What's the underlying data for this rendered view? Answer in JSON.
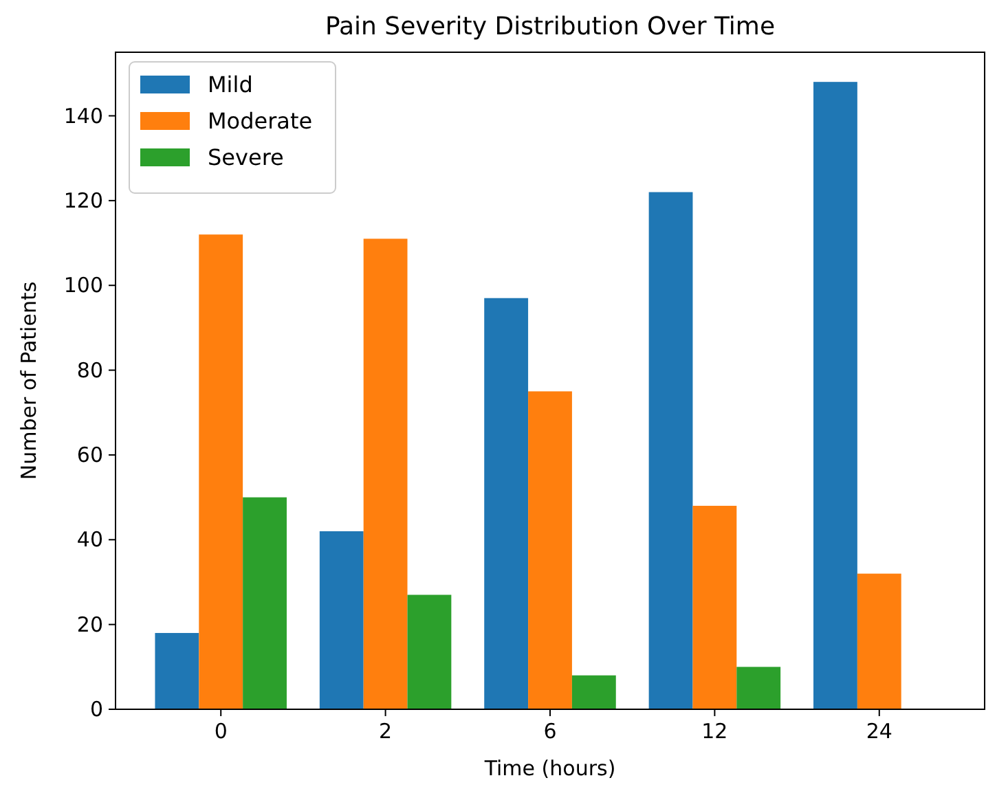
{
  "chart_data": {
    "type": "bar",
    "title": "Pain Severity Distribution Over Time",
    "xlabel": "Time (hours)",
    "ylabel": "Number of Patients",
    "categories": [
      "0",
      "2",
      "6",
      "12",
      "24"
    ],
    "series": [
      {
        "name": "Mild",
        "color": "#1f77b4",
        "values": [
          18,
          42,
          97,
          122,
          148
        ]
      },
      {
        "name": "Moderate",
        "color": "#ff7f0e",
        "values": [
          112,
          111,
          75,
          48,
          32
        ]
      },
      {
        "name": "Severe",
        "color": "#2ca02c",
        "values": [
          50,
          27,
          8,
          10,
          0
        ]
      }
    ],
    "ylim": [
      0,
      155
    ],
    "yticks": [
      0,
      20,
      40,
      60,
      80,
      100,
      120,
      140
    ],
    "legend": "top left",
    "grid": false
  }
}
